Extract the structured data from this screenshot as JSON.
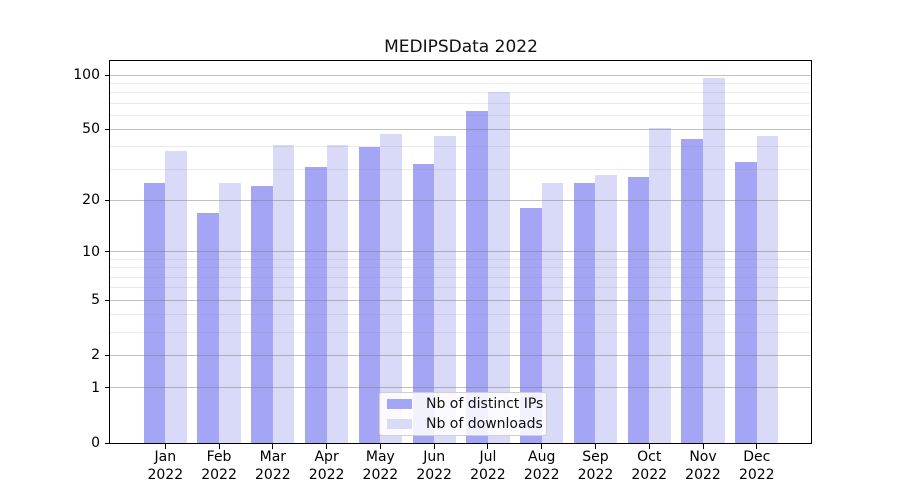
{
  "chart_data": {
    "type": "bar",
    "title": "MEDIPSData 2022",
    "categories": [
      "Jan 2022",
      "Feb 2022",
      "Mar 2022",
      "Apr 2022",
      "May 2022",
      "Jun 2022",
      "Jul 2022",
      "Aug 2022",
      "Sep 2022",
      "Oct 2022",
      "Nov 2022",
      "Dec 2022"
    ],
    "series": [
      {
        "name": "Nb of distinct IPs",
        "color": "#a5a5f6",
        "values": [
          25,
          17,
          24,
          31,
          40,
          32,
          63,
          18,
          25,
          27,
          44,
          33
        ]
      },
      {
        "name": "Nb of downloads",
        "color": "#d9d9f8",
        "values": [
          38,
          25,
          41,
          41,
          47,
          46,
          81,
          25,
          28,
          51,
          96,
          46
        ]
      }
    ],
    "yscale": "log1p",
    "ylim": [
      0,
      120
    ],
    "yticks": [
      0,
      1,
      2,
      5,
      10,
      20,
      50,
      100
    ],
    "yticks_minor": [
      3,
      4,
      6,
      7,
      8,
      9,
      30,
      40,
      60,
      70,
      80,
      90
    ],
    "grid": true,
    "legend_position": "lower-center"
  }
}
